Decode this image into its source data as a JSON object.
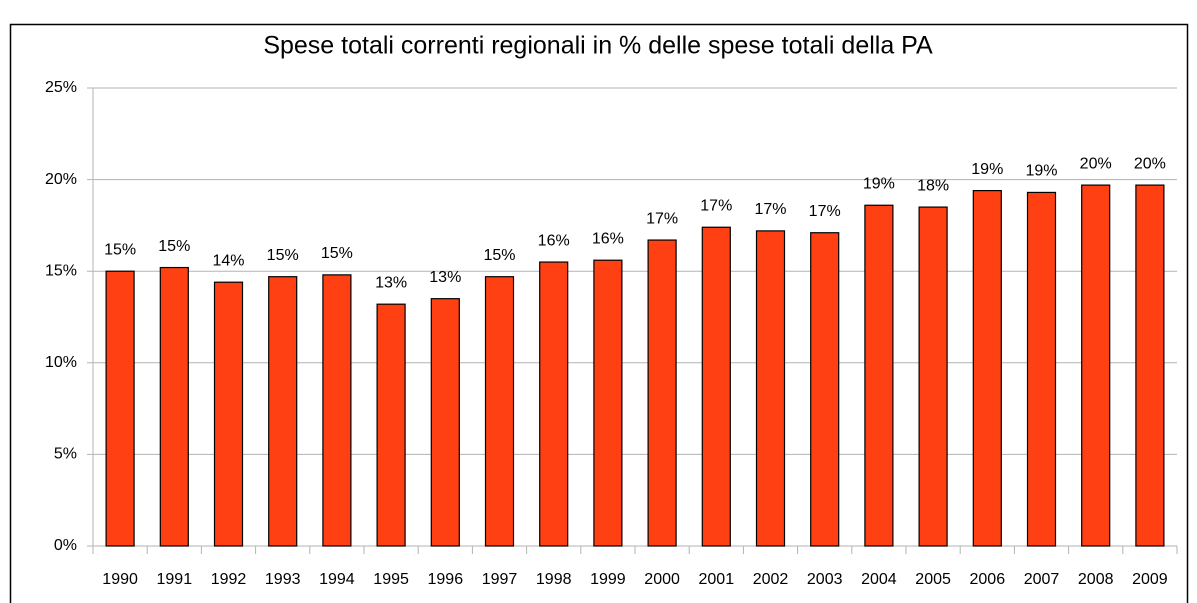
{
  "chart_data": {
    "type": "bar",
    "title": "Spese totali correnti regionali in % delle spese totali della PA",
    "categories": [
      "1990",
      "1991",
      "1992",
      "1993",
      "1994",
      "1995",
      "1996",
      "1997",
      "1998",
      "1999",
      "2000",
      "2001",
      "2002",
      "2003",
      "2004",
      "2005",
      "2006",
      "2007",
      "2008",
      "2009"
    ],
    "values": [
      15.0,
      15.2,
      14.4,
      14.7,
      14.8,
      13.2,
      13.5,
      14.7,
      15.5,
      15.6,
      16.7,
      17.4,
      17.2,
      17.1,
      18.6,
      18.5,
      19.4,
      19.3,
      19.7,
      19.7
    ],
    "value_labels": [
      "15%",
      "15%",
      "14%",
      "15%",
      "15%",
      "13%",
      "13%",
      "15%",
      "16%",
      "16%",
      "17%",
      "17%",
      "17%",
      "17%",
      "19%",
      "18%",
      "19%",
      "19%",
      "20%",
      "20%"
    ],
    "color": "#ff4013",
    "ylim": [
      0,
      25
    ],
    "yticks": [
      {
        "value": 0,
        "label": "0%"
      },
      {
        "value": 5,
        "label": "5%"
      },
      {
        "value": 10,
        "label": "10%"
      },
      {
        "value": 15,
        "label": "15%"
      },
      {
        "value": 20,
        "label": "20%"
      },
      {
        "value": 25,
        "label": "25%"
      }
    ],
    "grid": true
  }
}
